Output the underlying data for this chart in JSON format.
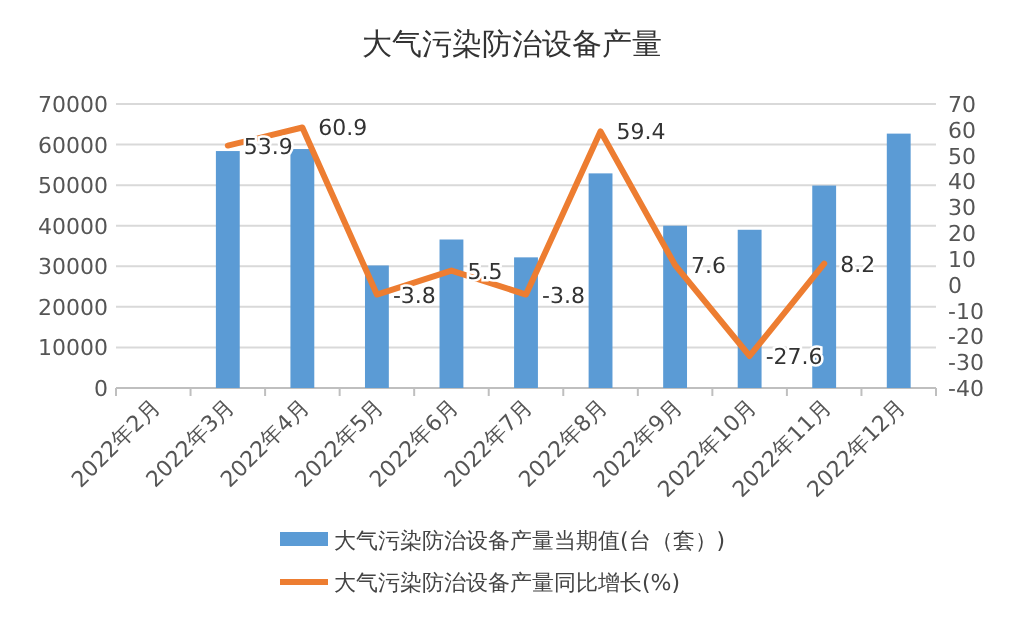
{
  "chart_data": {
    "type": "bar",
    "title": "大气污染防治设备产量",
    "categories": [
      "2022年2月",
      "2022年3月",
      "2022年4月",
      "2022年5月",
      "2022年6月",
      "2022年7月",
      "2022年8月",
      "2022年9月",
      "2022年10月",
      "2022年11月",
      "2022年12月"
    ],
    "series": [
      {
        "name": "大气污染防治设备产量当期值(台（套）)",
        "color": "#5b9bd5",
        "values": [
          null,
          58400,
          58900,
          30200,
          36600,
          32200,
          52900,
          40000,
          39000,
          49900,
          62700
        ]
      },
      {
        "name": "大气污染防治设备产量同比增长(%)",
        "type": "line",
        "axis": "y2",
        "color": "#ed7d31",
        "values": [
          null,
          53.9,
          60.9,
          -3.8,
          5.5,
          -3.8,
          59.4,
          7.6,
          -27.6,
          8.2,
          null
        ],
        "value_labels": [
          null,
          "53.9",
          "60.9",
          "-3.8",
          "5.5",
          "-3.8",
          "59.4",
          "7.6",
          "-27.6",
          "8.2",
          null
        ]
      }
    ],
    "ylim": [
      0,
      70000
    ],
    "yticks": [
      0,
      10000,
      20000,
      30000,
      40000,
      50000,
      60000,
      70000
    ],
    "y2lim": [
      -40,
      70
    ],
    "y2ticks": [
      -40,
      -30,
      -20,
      -10,
      0,
      10,
      20,
      30,
      40,
      50,
      60,
      70
    ],
    "grid": "y",
    "legend": "bottom",
    "marker": "none",
    "line_style": "solid"
  }
}
